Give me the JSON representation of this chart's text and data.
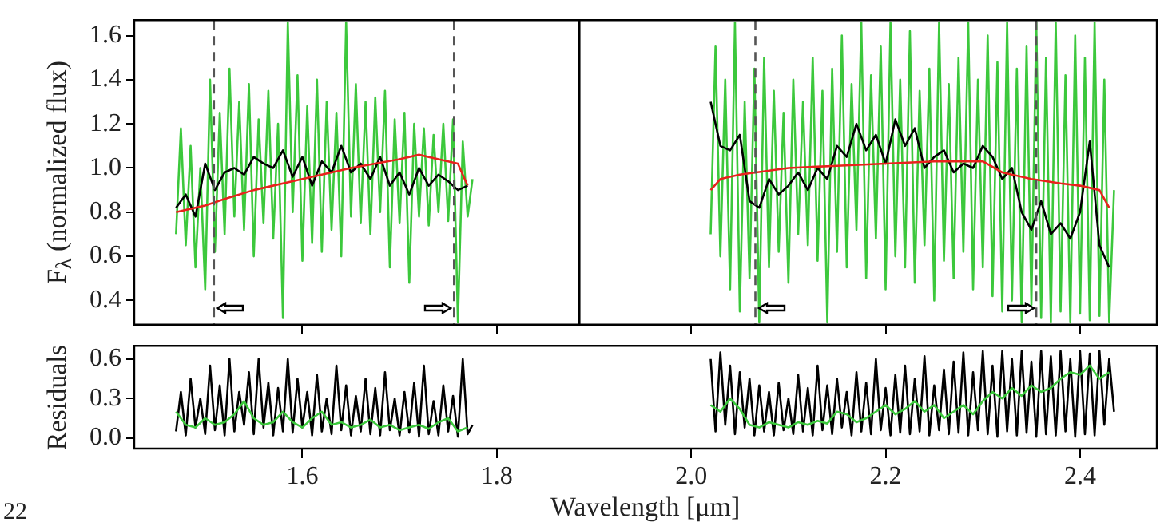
{
  "chart_data": [
    {
      "type": "line",
      "ylabel": "F$_{λ}$ (normalized flux)",
      "xlim": [
        1.427,
        2.479
      ],
      "xticks": [
        {
          "value": 1.6,
          "label": null
        },
        {
          "value": 1.8,
          "label": null
        },
        {
          "value": 2.0,
          "label": null
        },
        {
          "value": 2.2,
          "label": null
        },
        {
          "value": 2.4,
          "label": null
        }
      ],
      "ylim": [
        0.29,
        1.67
      ],
      "yticks": [
        {
          "value": 0.4,
          "label": "0.4"
        },
        {
          "value": 0.6,
          "label": "0.6"
        },
        {
          "value": 0.8,
          "label": "0.8"
        },
        {
          "value": 1.0,
          "label": "1.0"
        },
        {
          "value": 1.2,
          "label": "1.2"
        },
        {
          "value": 1.4,
          "label": "1.4"
        },
        {
          "value": 1.6,
          "label": "1.6"
        }
      ],
      "tick_labels": "y",
      "grid": false,
      "legend": false,
      "marker": "none",
      "line_style": "solid",
      "ref_lines": [
        {
          "axis": "x",
          "value": 1.509,
          "color": "#555555",
          "line_style": "dashed"
        },
        {
          "axis": "x",
          "value": 1.756,
          "color": "#555555",
          "line_style": "dashed"
        },
        {
          "axis": "x",
          "value": 2.066,
          "color": "#555555",
          "line_style": "dashed"
        },
        {
          "axis": "x",
          "value": 2.355,
          "color": "#555555",
          "line_style": "dashed"
        },
        {
          "axis": "x",
          "value": 1.885,
          "color": "#000000",
          "line_style": "solid"
        }
      ],
      "series": [
        {
          "color": "#3cc83c",
          "x": [
            1.47,
            1.475,
            1.48,
            1.485,
            1.49,
            1.495,
            1.5,
            1.505,
            1.51,
            1.515,
            1.52,
            1.525,
            1.53,
            1.535,
            1.54,
            1.545,
            1.55,
            1.555,
            1.56,
            1.565,
            1.57,
            1.575,
            1.58,
            1.585,
            1.59,
            1.595,
            1.6,
            1.605,
            1.61,
            1.615,
            1.62,
            1.625,
            1.63,
            1.635,
            1.64,
            1.645,
            1.65,
            1.655,
            1.66,
            1.665,
            1.67,
            1.675,
            1.68,
            1.685,
            1.69,
            1.695,
            1.7,
            1.705,
            1.71,
            1.715,
            1.72,
            1.725,
            1.73,
            1.735,
            1.74,
            1.745,
            1.75,
            1.755,
            1.76,
            1.765,
            1.77,
            1.775
          ],
          "values": [
            0.7,
            1.18,
            0.65,
            1.1,
            0.55,
            1.0,
            0.45,
            1.4,
            0.62,
            1.25,
            0.7,
            1.45,
            0.78,
            1.3,
            0.72,
            1.38,
            0.6,
            1.22,
            0.75,
            1.35,
            0.68,
            1.2,
            0.32,
            1.66,
            0.8,
            1.42,
            0.58,
            1.28,
            0.66,
            1.4,
            0.62,
            1.3,
            0.72,
            1.25,
            0.6,
            1.66,
            0.78,
            1.38,
            0.75,
            1.3,
            0.7,
            1.32,
            0.8,
            1.35,
            0.55,
            1.22,
            0.75,
            1.25,
            0.48,
            1.2,
            0.78,
            1.18,
            0.74,
            1.15,
            0.8,
            1.2,
            0.76,
            1.22,
            0.3,
            1.12,
            0.78,
            0.95
          ]
        },
        {
          "color": "#3cc83c",
          "x": [
            2.02,
            2.025,
            2.03,
            2.035,
            2.04,
            2.045,
            2.05,
            2.055,
            2.06,
            2.065,
            2.07,
            2.075,
            2.08,
            2.085,
            2.09,
            2.095,
            2.1,
            2.105,
            2.11,
            2.115,
            2.12,
            2.125,
            2.13,
            2.135,
            2.14,
            2.145,
            2.15,
            2.155,
            2.16,
            2.165,
            2.17,
            2.175,
            2.18,
            2.185,
            2.19,
            2.195,
            2.2,
            2.205,
            2.21,
            2.215,
            2.22,
            2.225,
            2.23,
            2.235,
            2.24,
            2.245,
            2.25,
            2.255,
            2.26,
            2.265,
            2.27,
            2.275,
            2.28,
            2.285,
            2.29,
            2.295,
            2.3,
            2.305,
            2.31,
            2.315,
            2.32,
            2.325,
            2.33,
            2.335,
            2.34,
            2.345,
            2.35,
            2.355,
            2.36,
            2.365,
            2.37,
            2.375,
            2.38,
            2.385,
            2.39,
            2.395,
            2.4,
            2.405,
            2.41,
            2.415,
            2.42,
            2.425,
            2.43,
            2.435
          ],
          "values": [
            0.7,
            1.55,
            0.6,
            1.4,
            0.45,
            1.66,
            0.35,
            1.3,
            0.5,
            1.45,
            0.3,
            1.5,
            0.55,
            1.35,
            0.62,
            1.25,
            0.48,
            1.4,
            0.7,
            1.3,
            0.65,
            1.5,
            0.58,
            1.35,
            0.3,
            1.45,
            0.62,
            1.6,
            0.55,
            1.38,
            0.72,
            1.66,
            0.5,
            1.42,
            0.68,
            1.55,
            0.45,
            1.66,
            0.6,
            1.4,
            0.55,
            1.62,
            0.48,
            1.35,
            0.65,
            1.45,
            0.4,
            1.66,
            0.58,
            1.38,
            0.5,
            1.5,
            0.62,
            1.66,
            0.45,
            1.4,
            0.55,
            1.6,
            0.42,
            1.48,
            0.35,
            1.66,
            0.4,
            1.45,
            0.3,
            1.55,
            0.38,
            1.66,
            0.32,
            1.5,
            0.3,
            1.66,
            0.35,
            1.42,
            0.3,
            1.6,
            0.34,
            1.5,
            0.31,
            1.66,
            0.33,
            1.4,
            0.3,
            0.9
          ]
        },
        {
          "color": "#000000",
          "x": [
            1.47,
            1.48,
            1.49,
            1.5,
            1.51,
            1.52,
            1.53,
            1.54,
            1.55,
            1.56,
            1.57,
            1.58,
            1.59,
            1.6,
            1.61,
            1.62,
            1.63,
            1.64,
            1.65,
            1.66,
            1.67,
            1.68,
            1.69,
            1.7,
            1.71,
            1.72,
            1.73,
            1.74,
            1.75,
            1.76,
            1.77
          ],
          "values": [
            0.82,
            0.88,
            0.78,
            1.02,
            0.9,
            0.98,
            1.0,
            0.97,
            1.05,
            1.02,
            1.0,
            1.08,
            0.96,
            1.05,
            0.92,
            1.03,
            0.98,
            1.1,
            0.98,
            1.02,
            0.95,
            1.05,
            0.92,
            0.98,
            0.88,
            1.0,
            0.92,
            0.97,
            0.94,
            0.9,
            0.92
          ]
        },
        {
          "color": "#000000",
          "x": [
            2.02,
            2.03,
            2.04,
            2.05,
            2.06,
            2.07,
            2.08,
            2.09,
            2.1,
            2.11,
            2.12,
            2.13,
            2.14,
            2.15,
            2.16,
            2.17,
            2.18,
            2.19,
            2.2,
            2.21,
            2.22,
            2.23,
            2.24,
            2.25,
            2.26,
            2.27,
            2.28,
            2.29,
            2.3,
            2.31,
            2.32,
            2.33,
            2.34,
            2.35,
            2.36,
            2.37,
            2.38,
            2.39,
            2.4,
            2.41,
            2.42,
            2.43
          ],
          "values": [
            1.3,
            1.1,
            1.08,
            1.15,
            0.85,
            0.82,
            0.95,
            0.88,
            0.92,
            0.98,
            0.9,
            1.0,
            0.95,
            1.1,
            1.05,
            1.2,
            1.08,
            1.15,
            1.02,
            1.22,
            1.1,
            1.18,
            1.0,
            1.05,
            1.08,
            0.98,
            1.02,
            1.0,
            1.1,
            1.05,
            0.95,
            1.0,
            0.8,
            0.72,
            0.85,
            0.7,
            0.75,
            0.68,
            0.8,
            1.12,
            0.65,
            0.55
          ]
        },
        {
          "color": "#e8231c",
          "x": [
            1.47,
            1.5,
            1.52,
            1.55,
            1.6,
            1.65,
            1.7,
            1.72,
            1.74,
            1.76,
            1.77
          ],
          "values": [
            0.8,
            0.83,
            0.86,
            0.9,
            0.95,
            1.0,
            1.04,
            1.06,
            1.04,
            1.02,
            0.92
          ]
        },
        {
          "color": "#e8231c",
          "x": [
            2.02,
            2.03,
            2.05,
            2.1,
            2.15,
            2.2,
            2.25,
            2.3,
            2.32,
            2.35,
            2.38,
            2.4,
            2.42,
            2.43
          ],
          "values": [
            0.9,
            0.95,
            0.97,
            1.0,
            1.01,
            1.02,
            1.03,
            1.03,
            0.98,
            0.95,
            0.93,
            0.92,
            0.9,
            0.82
          ]
        }
      ]
    },
    {
      "type": "line",
      "ylabel": "Residuals",
      "xlabel": "Wavelength [μm]",
      "annotations": [
        "22"
      ],
      "xlim": [
        1.427,
        2.479
      ],
      "xticks": [
        {
          "value": 1.6,
          "label": "1.6"
        },
        {
          "value": 1.8,
          "label": "1.8"
        },
        {
          "value": 2.0,
          "label": "2.0"
        },
        {
          "value": 2.2,
          "label": "2.2"
        },
        {
          "value": 2.4,
          "label": "2.4"
        }
      ],
      "ylim": [
        -0.08,
        0.7
      ],
      "yticks": [
        {
          "value": 0,
          "label": "0.0"
        },
        {
          "value": 0.3,
          "label": "0.3"
        },
        {
          "value": 0.6,
          "label": "0.6"
        }
      ],
      "grid": false,
      "legend": false,
      "marker": "none",
      "line_style": "solid",
      "series": [
        {
          "color": "#000000",
          "x": [
            1.47,
            1.475,
            1.48,
            1.485,
            1.49,
            1.495,
            1.5,
            1.505,
            1.51,
            1.515,
            1.52,
            1.525,
            1.53,
            1.535,
            1.54,
            1.545,
            1.55,
            1.555,
            1.56,
            1.565,
            1.57,
            1.575,
            1.58,
            1.585,
            1.59,
            1.595,
            1.6,
            1.605,
            1.61,
            1.615,
            1.62,
            1.625,
            1.63,
            1.635,
            1.64,
            1.645,
            1.65,
            1.655,
            1.66,
            1.665,
            1.67,
            1.675,
            1.68,
            1.685,
            1.69,
            1.695,
            1.7,
            1.705,
            1.71,
            1.715,
            1.72,
            1.725,
            1.73,
            1.735,
            1.74,
            1.745,
            1.75,
            1.755,
            1.76,
            1.765,
            1.77,
            1.775
          ],
          "values": [
            0.05,
            0.35,
            0.02,
            0.45,
            0.08,
            0.3,
            0.03,
            0.55,
            0.06,
            0.4,
            0.02,
            0.6,
            0.05,
            0.35,
            0.1,
            0.5,
            0.03,
            0.6,
            0.08,
            0.42,
            0.02,
            0.38,
            0.05,
            0.6,
            0.04,
            0.45,
            0.08,
            0.35,
            0.02,
            0.48,
            0.05,
            0.3,
            0.03,
            0.55,
            0.06,
            0.4,
            0.02,
            0.32,
            0.05,
            0.45,
            0.03,
            0.38,
            0.02,
            0.5,
            0.06,
            0.3,
            0.02,
            0.35,
            0.04,
            0.42,
            0.01,
            0.55,
            0.03,
            0.28,
            0.02,
            0.4,
            0.05,
            0.32,
            0.01,
            0.6,
            0.03,
            0.1
          ]
        },
        {
          "color": "#000000",
          "x": [
            2.02,
            2.025,
            2.03,
            2.035,
            2.04,
            2.045,
            2.05,
            2.055,
            2.06,
            2.065,
            2.07,
            2.075,
            2.08,
            2.085,
            2.09,
            2.095,
            2.1,
            2.105,
            2.11,
            2.115,
            2.12,
            2.125,
            2.13,
            2.135,
            2.14,
            2.145,
            2.15,
            2.155,
            2.16,
            2.165,
            2.17,
            2.175,
            2.18,
            2.185,
            2.19,
            2.195,
            2.2,
            2.205,
            2.21,
            2.215,
            2.22,
            2.225,
            2.23,
            2.235,
            2.24,
            2.245,
            2.25,
            2.255,
            2.26,
            2.265,
            2.27,
            2.275,
            2.28,
            2.285,
            2.29,
            2.295,
            2.3,
            2.305,
            2.31,
            2.315,
            2.32,
            2.325,
            2.33,
            2.335,
            2.34,
            2.345,
            2.35,
            2.355,
            2.36,
            2.365,
            2.37,
            2.375,
            2.38,
            2.385,
            2.39,
            2.395,
            2.4,
            2.405,
            2.41,
            2.415,
            2.42,
            2.425,
            2.43,
            2.435
          ],
          "values": [
            0.6,
            0.05,
            0.65,
            0.1,
            0.55,
            0.03,
            0.5,
            0.08,
            0.45,
            0.02,
            0.4,
            0.05,
            0.35,
            0.02,
            0.42,
            0.06,
            0.3,
            0.03,
            0.48,
            0.05,
            0.38,
            0.02,
            0.55,
            0.06,
            0.4,
            0.03,
            0.45,
            0.08,
            0.35,
            0.02,
            0.5,
            0.05,
            0.42,
            0.03,
            0.6,
            0.06,
            0.38,
            0.02,
            0.48,
            0.04,
            0.55,
            0.03,
            0.45,
            0.05,
            0.62,
            0.02,
            0.4,
            0.06,
            0.52,
            0.03,
            0.58,
            0.04,
            0.65,
            0.02,
            0.5,
            0.06,
            0.66,
            0.03,
            0.55,
            0.01,
            0.66,
            0.05,
            0.6,
            0.02,
            0.66,
            0.04,
            0.58,
            0.01,
            0.66,
            0.03,
            0.62,
            0.02,
            0.66,
            0.05,
            0.6,
            0.01,
            0.66,
            0.03,
            0.64,
            0.02,
            0.66,
            0.1,
            0.6,
            0.2
          ]
        },
        {
          "color": "#3cc83c",
          "x": [
            1.47,
            1.48,
            1.49,
            1.5,
            1.51,
            1.52,
            1.53,
            1.54,
            1.55,
            1.56,
            1.57,
            1.58,
            1.59,
            1.6,
            1.61,
            1.62,
            1.63,
            1.64,
            1.65,
            1.66,
            1.67,
            1.68,
            1.69,
            1.7,
            1.71,
            1.72,
            1.73,
            1.74,
            1.75,
            1.76,
            1.77
          ],
          "values": [
            0.2,
            0.1,
            0.08,
            0.15,
            0.1,
            0.12,
            0.18,
            0.28,
            0.15,
            0.1,
            0.12,
            0.2,
            0.12,
            0.08,
            0.15,
            0.2,
            0.1,
            0.12,
            0.08,
            0.1,
            0.14,
            0.08,
            0.1,
            0.06,
            0.08,
            0.1,
            0.07,
            0.12,
            0.15,
            0.05,
            0.08
          ]
        },
        {
          "color": "#3cc83c",
          "x": [
            2.02,
            2.03,
            2.04,
            2.05,
            2.06,
            2.07,
            2.08,
            2.09,
            2.1,
            2.11,
            2.12,
            2.13,
            2.14,
            2.15,
            2.16,
            2.17,
            2.18,
            2.19,
            2.2,
            2.21,
            2.22,
            2.23,
            2.24,
            2.25,
            2.26,
            2.27,
            2.28,
            2.29,
            2.3,
            2.31,
            2.32,
            2.33,
            2.34,
            2.35,
            2.36,
            2.37,
            2.38,
            2.39,
            2.4,
            2.41,
            2.42,
            2.43
          ],
          "values": [
            0.25,
            0.2,
            0.3,
            0.22,
            0.1,
            0.08,
            0.12,
            0.1,
            0.08,
            0.12,
            0.1,
            0.13,
            0.11,
            0.2,
            0.18,
            0.12,
            0.15,
            0.2,
            0.25,
            0.18,
            0.22,
            0.28,
            0.2,
            0.25,
            0.15,
            0.2,
            0.25,
            0.18,
            0.28,
            0.35,
            0.3,
            0.38,
            0.32,
            0.4,
            0.35,
            0.38,
            0.45,
            0.5,
            0.48,
            0.55,
            0.45,
            0.5
          ]
        }
      ]
    }
  ]
}
